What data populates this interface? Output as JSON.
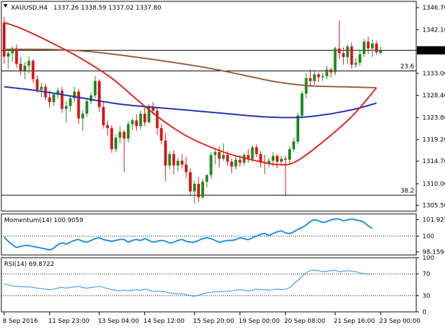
{
  "header": {
    "symbol": "XAUUSD,H4",
    "ohlc": "1337.26 1338.59 1337.02 1337.80"
  },
  "colors": {
    "bull": "#1d8a1d",
    "bear": "#dc1414",
    "sma_red": "#e0201c",
    "sma_blue": "#1f2fb0",
    "sma_brown": "#9a5b3a",
    "oscillator": "#1a8fe3",
    "grid": "#000000"
  },
  "chart_data": {
    "type": "candlestick",
    "price_axis": {
      "ylim": [
        1304.3,
        1348.0
      ],
      "ticks": [
        "1346.70",
        "1342.10",
        "1337.80",
        "1333.00",
        "1328.40",
        "1323.80",
        "1319.20",
        "1314.70",
        "1310.00",
        "1305.50"
      ],
      "current_price": "1337.80"
    },
    "time_axis": {
      "labels": [
        "8 Sep 2016",
        "11 Sep 23:00",
        "13 Sep 04:00",
        "14 Sep 12:00",
        "15 Sep 20:00",
        "19 Sep 00:00",
        "20 Sep 08:00",
        "21 Sep 16:00",
        "23 Sep 00:00"
      ]
    },
    "horizontal_levels": [
      {
        "label": "23.6",
        "price": 1333.5
      },
      {
        "label": "38.2",
        "price": 1307.6
      },
      {
        "label": "",
        "price": 1337.8
      }
    ],
    "candles": [
      [
        1343.5,
        1344.8,
        1335.0,
        1336.5
      ],
      [
        1336.5,
        1338.0,
        1334.0,
        1337.2
      ],
      [
        1337.2,
        1338.6,
        1335.4,
        1338.2
      ],
      [
        1338.2,
        1339.0,
        1334.2,
        1335.0
      ],
      [
        1335.0,
        1336.4,
        1332.6,
        1333.6
      ],
      [
        1333.6,
        1335.4,
        1331.8,
        1334.6
      ],
      [
        1334.6,
        1336.5,
        1333.0,
        1335.6
      ],
      [
        1335.6,
        1336.0,
        1331.0,
        1331.8
      ],
      [
        1331.8,
        1332.6,
        1329.0,
        1329.6
      ],
      [
        1329.6,
        1331.0,
        1328.0,
        1330.2
      ],
      [
        1330.2,
        1330.8,
        1327.5,
        1328.0
      ],
      [
        1328.0,
        1329.4,
        1325.8,
        1327.0
      ],
      [
        1327.0,
        1329.0,
        1326.2,
        1328.6
      ],
      [
        1328.6,
        1330.0,
        1327.8,
        1329.4
      ],
      [
        1329.4,
        1330.2,
        1324.8,
        1325.6
      ],
      [
        1325.6,
        1327.2,
        1322.8,
        1326.2
      ],
      [
        1326.2,
        1328.4,
        1325.0,
        1327.8
      ],
      [
        1327.8,
        1330.2,
        1327.0,
        1329.2
      ],
      [
        1329.2,
        1329.8,
        1322.4,
        1323.6
      ],
      [
        1323.6,
        1325.4,
        1321.0,
        1324.6
      ],
      [
        1324.6,
        1327.8,
        1324.0,
        1327.2
      ],
      [
        1327.2,
        1329.0,
        1326.6,
        1328.4
      ],
      [
        1328.4,
        1332.5,
        1327.8,
        1331.4
      ],
      [
        1331.4,
        1331.8,
        1325.0,
        1326.0
      ],
      [
        1326.0,
        1327.0,
        1321.5,
        1322.2
      ],
      [
        1322.2,
        1323.2,
        1320.0,
        1321.6
      ],
      [
        1321.6,
        1322.2,
        1316.4,
        1317.2
      ],
      [
        1317.2,
        1320.2,
        1316.6,
        1319.6
      ],
      [
        1319.6,
        1322.0,
        1318.4,
        1320.8
      ],
      [
        1320.8,
        1321.2,
        1312.4,
        1319.4
      ],
      [
        1319.4,
        1323.0,
        1318.6,
        1322.4
      ],
      [
        1322.4,
        1323.6,
        1321.2,
        1323.2
      ],
      [
        1323.2,
        1324.5,
        1321.0,
        1322.0
      ],
      [
        1322.0,
        1325.2,
        1321.4,
        1324.6
      ],
      [
        1324.6,
        1326.0,
        1322.0,
        1322.8
      ],
      [
        1322.8,
        1326.6,
        1322.6,
        1326.0
      ],
      [
        1326.0,
        1327.0,
        1324.4,
        1325.2
      ],
      [
        1325.2,
        1325.8,
        1320.2,
        1321.6
      ],
      [
        1321.6,
        1322.4,
        1318.2,
        1319.0
      ],
      [
        1319.0,
        1320.6,
        1310.6,
        1313.8
      ],
      [
        1313.8,
        1316.8,
        1313.0,
        1316.2
      ],
      [
        1316.2,
        1317.0,
        1312.0,
        1313.8
      ],
      [
        1313.8,
        1315.4,
        1312.6,
        1314.8
      ],
      [
        1314.8,
        1316.2,
        1313.2,
        1314.0
      ],
      [
        1314.0,
        1315.6,
        1311.2,
        1312.4
      ],
      [
        1312.4,
        1313.2,
        1307.6,
        1308.4
      ],
      [
        1308.4,
        1310.6,
        1305.8,
        1310.0
      ],
      [
        1310.0,
        1311.4,
        1306.2,
        1307.2
      ],
      [
        1307.2,
        1311.0,
        1306.8,
        1310.4
      ],
      [
        1310.4,
        1312.0,
        1309.2,
        1311.8
      ],
      [
        1311.8,
        1316.6,
        1311.0,
        1316.0
      ],
      [
        1316.0,
        1317.2,
        1314.0,
        1316.6
      ],
      [
        1316.6,
        1317.8,
        1313.4,
        1315.2
      ],
      [
        1315.2,
        1318.4,
        1314.8,
        1316.0
      ],
      [
        1316.0,
        1316.8,
        1313.8,
        1314.6
      ],
      [
        1314.6,
        1315.2,
        1312.2,
        1313.6
      ],
      [
        1313.6,
        1315.8,
        1313.0,
        1315.0
      ],
      [
        1315.0,
        1316.0,
        1313.6,
        1314.4
      ],
      [
        1314.4,
        1316.4,
        1313.8,
        1316.0
      ],
      [
        1316.0,
        1317.2,
        1314.4,
        1315.2
      ],
      [
        1315.2,
        1318.0,
        1314.6,
        1317.6
      ],
      [
        1317.6,
        1318.2,
        1315.6,
        1316.2
      ],
      [
        1316.2,
        1316.8,
        1313.4,
        1314.4
      ],
      [
        1314.4,
        1316.0,
        1312.0,
        1314.2
      ],
      [
        1314.2,
        1315.4,
        1313.4,
        1314.8
      ],
      [
        1314.8,
        1316.6,
        1313.6,
        1315.8
      ],
      [
        1315.8,
        1316.2,
        1313.2,
        1314.6
      ],
      [
        1314.6,
        1315.8,
        1313.8,
        1315.2
      ],
      [
        1315.2,
        1315.8,
        1307.4,
        1315.0
      ],
      [
        1315.0,
        1317.8,
        1314.2,
        1317.2
      ],
      [
        1317.2,
        1319.6,
        1316.6,
        1318.8
      ],
      [
        1318.8,
        1324.8,
        1318.2,
        1324.2
      ],
      [
        1324.2,
        1329.4,
        1323.6,
        1328.8
      ],
      [
        1328.8,
        1333.0,
        1327.8,
        1332.0
      ],
      [
        1332.0,
        1333.8,
        1330.2,
        1331.4
      ],
      [
        1331.4,
        1333.4,
        1330.6,
        1332.8
      ],
      [
        1332.8,
        1333.2,
        1331.2,
        1332.2
      ],
      [
        1332.2,
        1333.0,
        1331.4,
        1332.4
      ],
      [
        1332.4,
        1334.6,
        1331.8,
        1333.8
      ],
      [
        1333.8,
        1334.2,
        1332.2,
        1333.2
      ],
      [
        1333.2,
        1338.6,
        1332.6,
        1338.2
      ],
      [
        1338.2,
        1344.0,
        1336.0,
        1337.2
      ],
      [
        1337.2,
        1338.4,
        1334.8,
        1336.4
      ],
      [
        1336.4,
        1339.0,
        1335.0,
        1338.6
      ],
      [
        1338.6,
        1339.4,
        1334.0,
        1334.8
      ],
      [
        1334.8,
        1336.2,
        1334.2,
        1335.2
      ],
      [
        1335.2,
        1337.8,
        1334.6,
        1337.0
      ],
      [
        1337.0,
        1340.2,
        1336.4,
        1339.6
      ],
      [
        1339.6,
        1340.6,
        1337.0,
        1338.2
      ],
      [
        1338.2,
        1340.0,
        1336.4,
        1339.2
      ],
      [
        1339.2,
        1339.8,
        1336.8,
        1337.4
      ],
      [
        1337.26,
        1338.59,
        1337.02,
        1337.8
      ]
    ],
    "sma_red": [
      1343.6,
      1342.4,
      1340.0,
      1336.4,
      1332.0,
      1327.6,
      1323.4,
      1320.0,
      1317.6,
      1315.8,
      1314.6,
      1314.0,
      1314.4,
      1318.0,
      1324.0,
      1330.0
    ],
    "sma_red_x": [
      0,
      4,
      10,
      18,
      26,
      32,
      38,
      44,
      50,
      56,
      62,
      66,
      70,
      76,
      84,
      90
    ],
    "sma_blue": [
      1330.2,
      1329.4,
      1328.0,
      1326.6,
      1325.8,
      1325.2,
      1324.6,
      1324.0,
      1323.8,
      1324.2,
      1325.4,
      1326.8
    ],
    "sma_blue_x": [
      0,
      8,
      18,
      28,
      38,
      46,
      54,
      62,
      70,
      76,
      84,
      90
    ],
    "sma_brown": [
      1338.0,
      1338.0,
      1337.6,
      1336.6,
      1335.4,
      1334.0,
      1332.6,
      1331.2,
      1330.4,
      1330.2,
      1330.0
    ],
    "sma_brown_x": [
      0,
      10,
      20,
      30,
      40,
      50,
      58,
      66,
      74,
      82,
      90
    ],
    "momentum": {
      "title": "Momentum(14) 100.9059",
      "ylim": [
        97.8,
        102.6
      ],
      "ticks": [
        "101.9254",
        "100",
        "98.1591"
      ],
      "reference_level": 100,
      "values": [
        99.9,
        99.4,
        99.0,
        98.7,
        98.8,
        98.9,
        98.9,
        98.8,
        98.7,
        98.6,
        98.5,
        98.4,
        98.6,
        99.0,
        99.2,
        99.1,
        99.3,
        99.5,
        99.6,
        99.4,
        99.3,
        99.5,
        99.7,
        99.8,
        99.6,
        99.5,
        99.4,
        99.5,
        99.6,
        99.6,
        99.3,
        99.5,
        99.6,
        99.5,
        99.7,
        99.5,
        99.3,
        99.4,
        99.5,
        99.4,
        99.2,
        99.3,
        99.5,
        99.6,
        99.4,
        99.3,
        99.3,
        99.5,
        99.7,
        99.8,
        99.7,
        99.5,
        99.3,
        99.4,
        99.5,
        99.5,
        99.6,
        99.8,
        99.7,
        99.6,
        99.8,
        100.0,
        100.2,
        100.3,
        100.1,
        100.3,
        100.5,
        100.6,
        100.4,
        100.3,
        100.5,
        100.8,
        101.0,
        101.3,
        101.7,
        101.9,
        101.8,
        101.6,
        101.7,
        101.9,
        102.0,
        102.0,
        101.8,
        101.9,
        102.0,
        101.9,
        101.8,
        101.6,
        101.2,
        100.9
      ]
    },
    "rsi": {
      "title": "RSI(14) 69.8722",
      "ylim": [
        0,
        100
      ],
      "ticks": [
        "100",
        "70",
        "30",
        "0"
      ],
      "levels": [
        70,
        30
      ],
      "values": [
        52,
        50,
        48,
        47,
        47,
        46,
        46,
        45,
        44,
        43,
        42,
        41,
        42,
        44,
        45,
        44,
        45,
        46,
        47,
        45,
        44,
        45,
        46,
        47,
        45,
        43,
        41,
        40,
        39,
        40,
        39,
        40,
        41,
        40,
        42,
        40,
        38,
        38,
        38,
        37,
        35,
        34,
        33,
        33,
        32,
        30,
        29,
        31,
        33,
        35,
        36,
        37,
        37,
        38,
        38,
        39,
        40,
        41,
        40,
        39,
        40,
        42,
        41,
        41,
        40,
        41,
        42,
        41,
        42,
        45,
        52,
        58,
        66,
        72,
        76,
        77,
        76,
        74,
        75,
        76,
        77,
        74,
        75,
        76,
        75,
        74,
        72,
        70,
        70,
        69.87
      ]
    }
  }
}
